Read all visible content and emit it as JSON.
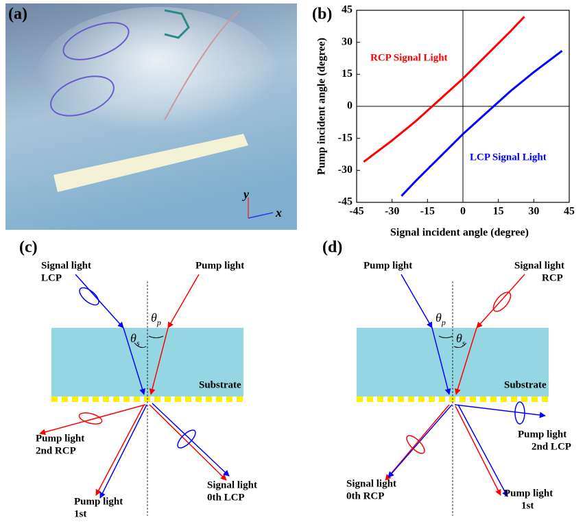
{
  "panel_a": {
    "label": "(a)",
    "axis_y": "y",
    "axis_x": "x"
  },
  "chart_data": {
    "type": "line",
    "label": "(b)",
    "xlabel": "Signal incident angle (degree)",
    "ylabel": "Pump incident angle (degree)",
    "xlim": [
      -45,
      45
    ],
    "ylim": [
      -45,
      45
    ],
    "xticks": [
      -45,
      -30,
      -15,
      0,
      15,
      30,
      45
    ],
    "yticks": [
      -45,
      -30,
      -15,
      0,
      15,
      30,
      45
    ],
    "series": [
      {
        "name": "RCP Signal Light",
        "color": "#ff0000",
        "x": [
          -42,
          -30,
          -20,
          -13,
          -5,
          0,
          10,
          20,
          26
        ],
        "values": [
          -26,
          -16,
          -7,
          0,
          8,
          13,
          24,
          35,
          42
        ]
      },
      {
        "name": "LCP Signal Light",
        "color": "#0000ff",
        "x": [
          -26,
          -20,
          -10,
          0,
          5,
          13,
          20,
          30,
          42
        ],
        "values": [
          -42,
          -35,
          -24,
          -13,
          -8,
          0,
          7,
          16,
          26
        ]
      }
    ]
  },
  "panel_c": {
    "label": "(c)",
    "signal_in": [
      "Signal light",
      "LCP"
    ],
    "pump_in": "Pump light",
    "substrate": "Substrate",
    "theta_s": {
      "symbol": "θ",
      "subscript": "s"
    },
    "theta_p": {
      "symbol": "θ",
      "subscript": "p"
    },
    "pump_2nd": [
      "Pump light",
      "2nd RCP"
    ],
    "pump_1st": [
      "Pump light",
      "1st"
    ],
    "signal_0th": [
      "Signal light",
      "0th LCP"
    ]
  },
  "panel_d": {
    "label": "(d)",
    "pump_in": "Pump light",
    "signal_in": [
      "Signal light",
      "RCP"
    ],
    "substrate": "Substrate",
    "theta_p": {
      "symbol": "θ",
      "subscript": "p"
    },
    "theta_s": {
      "symbol": "θ",
      "subscript": "s"
    },
    "pump_2nd": [
      "Pump light",
      "2nd LCP"
    ],
    "signal_0th": [
      "Signal light",
      "0th RCP"
    ],
    "pump_1st": [
      "Pump light",
      "1st"
    ]
  }
}
